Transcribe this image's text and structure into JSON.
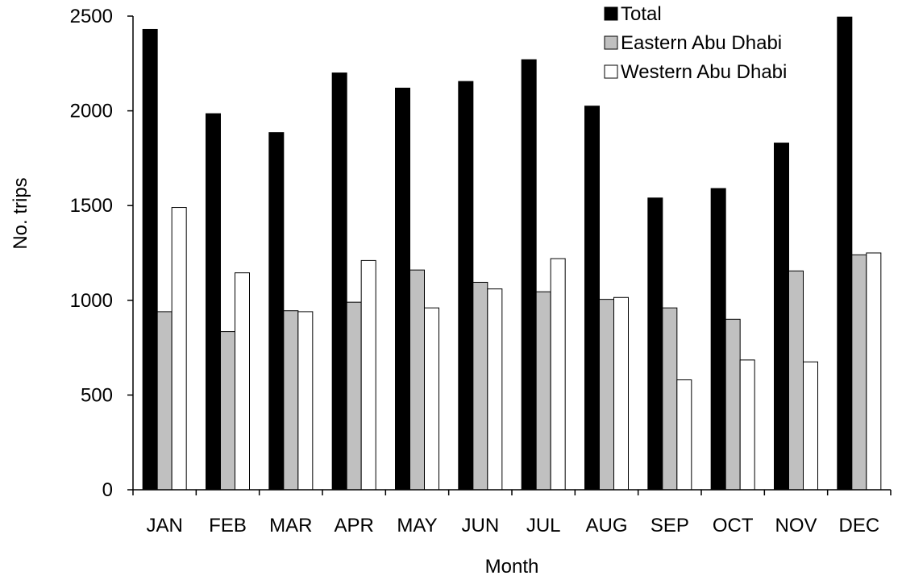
{
  "chart_data": {
    "type": "bar",
    "title": "",
    "xlabel": "Month",
    "ylabel": "No. trips",
    "ylim": [
      0,
      2500
    ],
    "yticks": [
      0,
      500,
      1000,
      1500,
      2000,
      2500
    ],
    "grid": false,
    "legend_position": "top-right",
    "categories": [
      "JAN",
      "FEB",
      "MAR",
      "APR",
      "MAY",
      "JUN",
      "JUL",
      "AUG",
      "SEP",
      "OCT",
      "NOV",
      "DEC"
    ],
    "series": [
      {
        "name": "Total",
        "color": "#000000",
        "values": [
          2430,
          1985,
          1885,
          2200,
          2120,
          2155,
          2270,
          2025,
          1540,
          1590,
          1830,
          2495
        ]
      },
      {
        "name": "Eastern Abu Dhabi",
        "color": "#c0c0c0",
        "values": [
          940,
          835,
          945,
          990,
          1160,
          1095,
          1045,
          1005,
          960,
          900,
          1155,
          1240
        ]
      },
      {
        "name": "Western Abu Dhabi",
        "color": "#ffffff",
        "values": [
          1490,
          1145,
          940,
          1210,
          960,
          1060,
          1220,
          1015,
          580,
          685,
          675,
          1250
        ]
      }
    ]
  }
}
